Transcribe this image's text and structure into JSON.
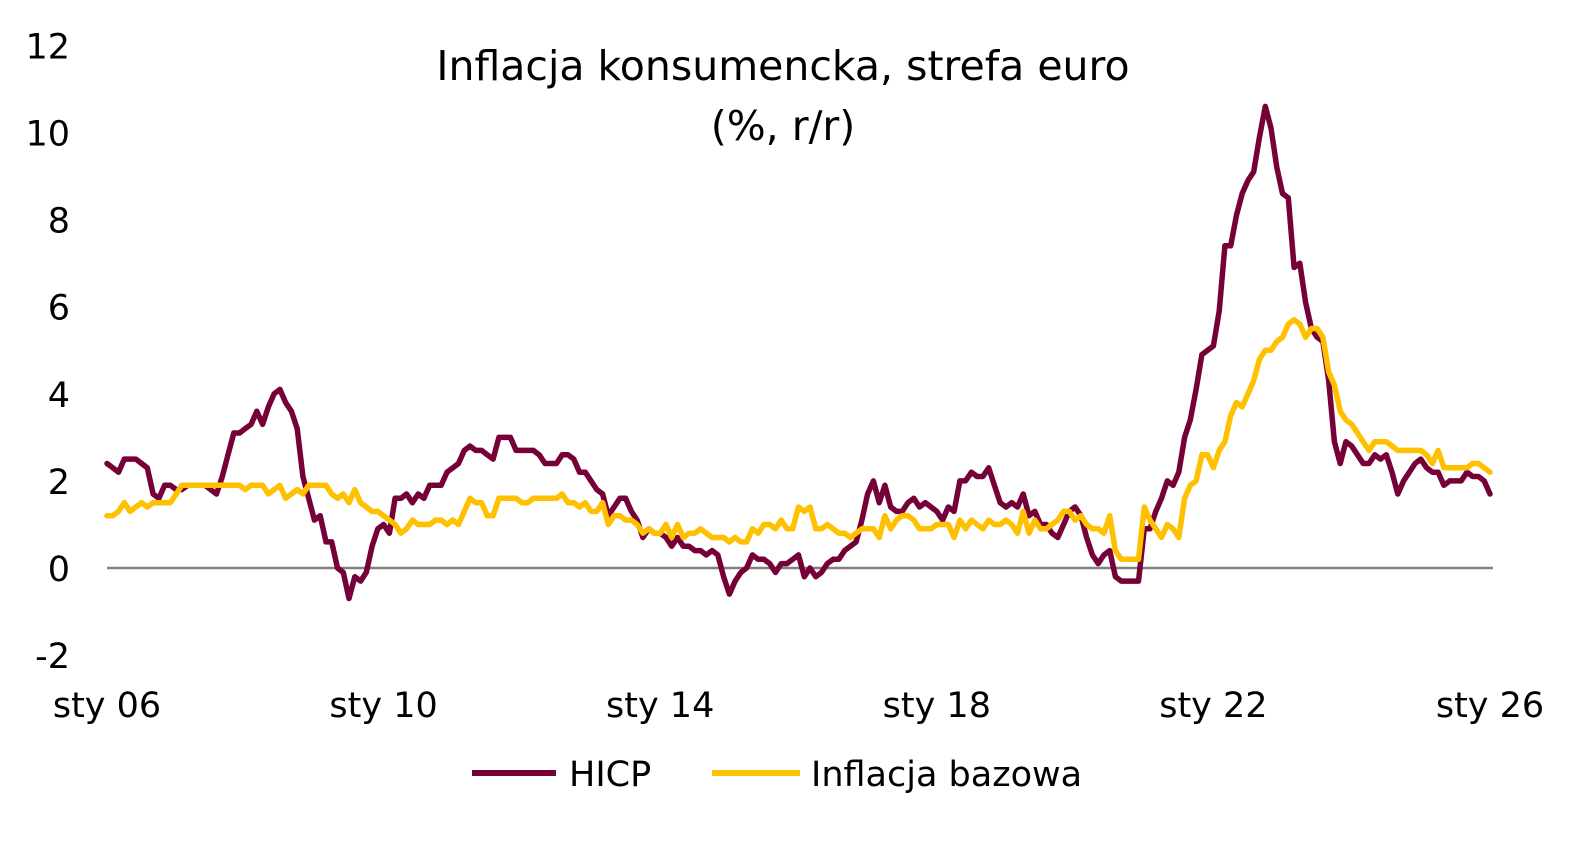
{
  "chart_data": {
    "type": "line",
    "title": "Inflacja konsumencka, strefa euro",
    "subtitle": "(%, r/r)",
    "xlabel": "",
    "ylabel": "",
    "ylim": [
      -2,
      12
    ],
    "y_ticks": [
      "-2",
      "0",
      "2",
      "4",
      "6",
      "8",
      "10",
      "12"
    ],
    "x_ticks": [
      "sty 06",
      "sty 10",
      "sty 14",
      "sty 18",
      "sty 22",
      "sty 26"
    ],
    "x_range": [
      "sty 06",
      "sty 26"
    ],
    "frequency": "monthly",
    "grid": false,
    "legend_position": "bottom",
    "series": [
      {
        "name": "HICP",
        "color": "#760038",
        "values_by_year": {
          "2006": [
            2.4,
            2.3,
            2.2,
            2.5,
            2.5,
            2.5,
            2.4,
            2.3,
            1.7,
            1.6,
            1.9,
            1.9
          ],
          "2007": [
            1.8,
            1.8,
            1.9,
            1.9,
            1.9,
            1.9,
            1.8,
            1.7,
            2.1,
            2.6,
            3.1,
            3.1
          ],
          "2008": [
            3.2,
            3.3,
            3.6,
            3.3,
            3.7,
            4.0,
            4.1,
            3.8,
            3.6,
            3.2,
            2.1,
            1.6
          ],
          "2009": [
            1.1,
            1.2,
            0.6,
            0.6,
            0.0,
            -0.1,
            -0.7,
            -0.2,
            -0.3,
            -0.1,
            0.5,
            0.9
          ],
          "2010": [
            1.0,
            0.8,
            1.6,
            1.6,
            1.7,
            1.5,
            1.7,
            1.6,
            1.9,
            1.9,
            1.9,
            2.2
          ],
          "2011": [
            2.3,
            2.4,
            2.7,
            2.8,
            2.7,
            2.7,
            2.6,
            2.5,
            3.0,
            3.0,
            3.0,
            2.7
          ],
          "2012": [
            2.7,
            2.7,
            2.7,
            2.6,
            2.4,
            2.4,
            2.4,
            2.6,
            2.6,
            2.5,
            2.2,
            2.2
          ],
          "2013": [
            2.0,
            1.8,
            1.7,
            1.2,
            1.4,
            1.6,
            1.6,
            1.3,
            1.1,
            0.7,
            0.9,
            0.8
          ],
          "2014": [
            0.8,
            0.7,
            0.5,
            0.7,
            0.5,
            0.5,
            0.4,
            0.4,
            0.3,
            0.4,
            0.3,
            -0.2
          ],
          "2015": [
            -0.6,
            -0.3,
            -0.1,
            0.0,
            0.3,
            0.2,
            0.2,
            0.1,
            -0.1,
            0.1,
            0.1,
            0.2
          ],
          "2016": [
            0.3,
            -0.2,
            0.0,
            -0.2,
            -0.1,
            0.1,
            0.2,
            0.2,
            0.4,
            0.5,
            0.6,
            1.1
          ],
          "2017": [
            1.7,
            2.0,
            1.5,
            1.9,
            1.4,
            1.3,
            1.3,
            1.5,
            1.6,
            1.4,
            1.5,
            1.4
          ],
          "2018": [
            1.3,
            1.1,
            1.4,
            1.3,
            2.0,
            2.0,
            2.2,
            2.1,
            2.1,
            2.3,
            1.9,
            1.5
          ],
          "2019": [
            1.4,
            1.5,
            1.4,
            1.7,
            1.2,
            1.3,
            1.0,
            1.0,
            0.8,
            0.7,
            1.0,
            1.3
          ],
          "2020": [
            1.4,
            1.2,
            0.7,
            0.3,
            0.1,
            0.3,
            0.4,
            -0.2,
            -0.3,
            -0.3,
            -0.3,
            -0.3
          ],
          "2021": [
            0.9,
            0.9,
            1.3,
            1.6,
            2.0,
            1.9,
            2.2,
            3.0,
            3.4,
            4.1,
            4.9,
            5.0
          ],
          "2022": [
            5.1,
            5.9,
            7.4,
            7.4,
            8.1,
            8.6,
            8.9,
            9.1,
            9.9,
            10.6,
            10.1,
            9.2
          ],
          "2023": [
            8.6,
            8.5,
            6.9,
            7.0,
            6.1,
            5.5,
            5.3,
            5.2,
            4.3,
            2.9,
            2.4,
            2.9
          ],
          "2024": [
            2.8,
            2.6,
            2.4,
            2.4,
            2.6,
            2.5,
            2.6,
            2.2,
            1.7,
            2.0,
            2.2,
            2.4
          ],
          "2025": [
            2.5,
            2.3,
            2.2,
            2.2,
            1.9,
            2.0,
            2.0,
            2.0,
            2.2,
            2.1,
            2.1,
            2.0
          ],
          "2026": [
            1.7
          ]
        }
      },
      {
        "name": "Inflacja bazowa",
        "color": "#FFC000",
        "values_by_year": {
          "2006": [
            1.2,
            1.2,
            1.3,
            1.5,
            1.3,
            1.4,
            1.5,
            1.4,
            1.5,
            1.5,
            1.5,
            1.5
          ],
          "2007": [
            1.7,
            1.9,
            1.9,
            1.9,
            1.9,
            1.9,
            1.9,
            1.9,
            1.9,
            1.9,
            1.9,
            1.9
          ],
          "2008": [
            1.8,
            1.9,
            1.9,
            1.9,
            1.7,
            1.8,
            1.9,
            1.6,
            1.7,
            1.8,
            1.7,
            1.9
          ],
          "2009": [
            1.9,
            1.9,
            1.9,
            1.7,
            1.6,
            1.7,
            1.5,
            1.8,
            1.5,
            1.4,
            1.3,
            1.3
          ],
          "2010": [
            1.2,
            1.1,
            1.0,
            0.8,
            0.9,
            1.1,
            1.0,
            1.0,
            1.0,
            1.1,
            1.1,
            1.0
          ],
          "2011": [
            1.1,
            1.0,
            1.3,
            1.6,
            1.5,
            1.5,
            1.2,
            1.2,
            1.6,
            1.6,
            1.6,
            1.6
          ],
          "2012": [
            1.5,
            1.5,
            1.6,
            1.6,
            1.6,
            1.6,
            1.6,
            1.7,
            1.5,
            1.5,
            1.4,
            1.5
          ],
          "2013": [
            1.3,
            1.3,
            1.5,
            1.0,
            1.2,
            1.2,
            1.1,
            1.1,
            1.0,
            0.8,
            0.9,
            0.8
          ],
          "2014": [
            0.8,
            1.0,
            0.7,
            1.0,
            0.7,
            0.8,
            0.8,
            0.9,
            0.8,
            0.7,
            0.7,
            0.7
          ],
          "2015": [
            0.6,
            0.7,
            0.6,
            0.6,
            0.9,
            0.8,
            1.0,
            1.0,
            0.9,
            1.1,
            0.9,
            0.9
          ],
          "2016": [
            1.4,
            1.3,
            1.4,
            0.9,
            0.9,
            1.0,
            0.9,
            0.8,
            0.8,
            0.7,
            0.8,
            0.9
          ],
          "2017": [
            0.9,
            0.9,
            0.7,
            1.2,
            0.9,
            1.1,
            1.2,
            1.2,
            1.1,
            0.9,
            0.9,
            0.9
          ],
          "2018": [
            1.0,
            1.0,
            1.0,
            0.7,
            1.1,
            0.9,
            1.1,
            1.0,
            0.9,
            1.1,
            1.0,
            1.0
          ],
          "2019": [
            1.1,
            1.0,
            0.8,
            1.3,
            0.8,
            1.1,
            0.9,
            0.9,
            1.0,
            1.1,
            1.3,
            1.3
          ],
          "2020": [
            1.1,
            1.2,
            1.0,
            0.9,
            0.9,
            0.8,
            1.2,
            0.4,
            0.2,
            0.2,
            0.2,
            0.2
          ],
          "2021": [
            1.4,
            1.1,
            0.9,
            0.7,
            1.0,
            0.9,
            0.7,
            1.6,
            1.9,
            2.0,
            2.6,
            2.6
          ],
          "2022": [
            2.3,
            2.7,
            2.9,
            3.5,
            3.8,
            3.7,
            4.0,
            4.3,
            4.8,
            5.0,
            5.0,
            5.2
          ],
          "2023": [
            5.3,
            5.6,
            5.7,
            5.6,
            5.3,
            5.5,
            5.5,
            5.3,
            4.5,
            4.2,
            3.6,
            3.4
          ],
          "2024": [
            3.3,
            3.1,
            2.9,
            2.7,
            2.9,
            2.9,
            2.9,
            2.8,
            2.7,
            2.7,
            2.7,
            2.7
          ],
          "2025": [
            2.7,
            2.6,
            2.4,
            2.7,
            2.3,
            2.3,
            2.3,
            2.3,
            2.3,
            2.4,
            2.4,
            2.3
          ],
          "2026": [
            2.2
          ]
        }
      }
    ]
  },
  "colors": {
    "zero_line": "#808080"
  }
}
